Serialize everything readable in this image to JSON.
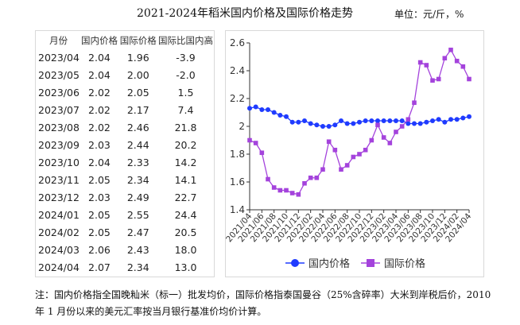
{
  "title": "2021-2024年稻米国内价格及国际价格走势",
  "unit": "单位：元/斤，%",
  "table": {
    "headers": [
      "月份",
      "国内价格",
      "国际价格",
      "国际比国内高"
    ],
    "rows": [
      [
        "2023/04",
        "2.04",
        "1.96",
        "-3.9"
      ],
      [
        "2023/05",
        "2.04",
        "2.00",
        "-2.0"
      ],
      [
        "2023/06",
        "2.02",
        "2.05",
        "1.5"
      ],
      [
        "2023/07",
        "2.02",
        "2.17",
        "7.4"
      ],
      [
        "2023/08",
        "2.02",
        "2.46",
        "21.8"
      ],
      [
        "2023/09",
        "2.03",
        "2.44",
        "20.2"
      ],
      [
        "2023/10",
        "2.04",
        "2.33",
        "14.2"
      ],
      [
        "2023/11",
        "2.05",
        "2.34",
        "14.1"
      ],
      [
        "2023/12",
        "2.03",
        "2.49",
        "22.7"
      ],
      [
        "2024/01",
        "2.05",
        "2.55",
        "24.4"
      ],
      [
        "2024/02",
        "2.05",
        "2.47",
        "20.5"
      ],
      [
        "2024/03",
        "2.06",
        "2.43",
        "18.0"
      ],
      [
        "2024/04",
        "2.07",
        "2.34",
        "13.0"
      ]
    ]
  },
  "chart_data": {
    "type": "line",
    "x": [
      "2021/04",
      "2021/05",
      "2021/06",
      "2021/07",
      "2021/08",
      "2021/09",
      "2021/10",
      "2021/11",
      "2021/12",
      "2022/01",
      "2022/02",
      "2022/03",
      "2022/04",
      "2022/05",
      "2022/06",
      "2022/07",
      "2022/08",
      "2022/09",
      "2022/10",
      "2022/11",
      "2022/12",
      "2023/01",
      "2023/02",
      "2023/03",
      "2023/04",
      "2023/05",
      "2023/06",
      "2023/07",
      "2023/08",
      "2023/09",
      "2023/10",
      "2023/11",
      "2023/12",
      "2024/01",
      "2024/02",
      "2024/03",
      "2024/04"
    ],
    "xticks": [
      "2021/04",
      "2021/06",
      "2021/08",
      "2021/10",
      "2021/12",
      "2022/02",
      "2022/04",
      "2022/06",
      "2022/08",
      "2022/10",
      "2022/12",
      "2023/02",
      "2023/04",
      "2023/06",
      "2023/08",
      "2023/10",
      "2023/12",
      "2024/02",
      "2024/04"
    ],
    "yticks": [
      "1.4",
      "1.6",
      "1.8",
      "2",
      "2.2",
      "2.4",
      "2.6"
    ],
    "ylim": [
      1.4,
      2.6
    ],
    "grid": false,
    "legend_position": "bottom",
    "series": [
      {
        "name": "国内价格",
        "color": "#1f3bff",
        "marker": "circle",
        "values": [
          2.13,
          2.14,
          2.12,
          2.12,
          2.1,
          2.08,
          2.07,
          2.03,
          2.03,
          2.04,
          2.02,
          2.01,
          2.0,
          2.0,
          2.01,
          2.04,
          2.02,
          2.02,
          2.03,
          2.04,
          2.04,
          2.04,
          2.04,
          2.04,
          2.04,
          2.04,
          2.02,
          2.02,
          2.02,
          2.03,
          2.04,
          2.05,
          2.03,
          2.05,
          2.05,
          2.06,
          2.07
        ]
      },
      {
        "name": "国际价格",
        "color": "#a443dc",
        "marker": "square",
        "values": [
          1.9,
          1.88,
          1.81,
          1.62,
          1.56,
          1.54,
          1.54,
          1.52,
          1.51,
          1.59,
          1.63,
          1.63,
          1.69,
          1.89,
          1.83,
          1.69,
          1.72,
          1.78,
          1.8,
          1.83,
          1.9,
          2.01,
          1.92,
          1.88,
          1.96,
          2.0,
          2.05,
          2.17,
          2.46,
          2.44,
          2.33,
          2.34,
          2.49,
          2.55,
          2.47,
          2.43,
          2.34
        ]
      }
    ]
  },
  "note": "注：国内价格指全国晚籼米（标一）批发均价，国际价格指泰国曼谷（25%含碎率）大米到岸税后价，2010 年 1 月份以来的美元汇率按当月银行基准价均价计算。"
}
